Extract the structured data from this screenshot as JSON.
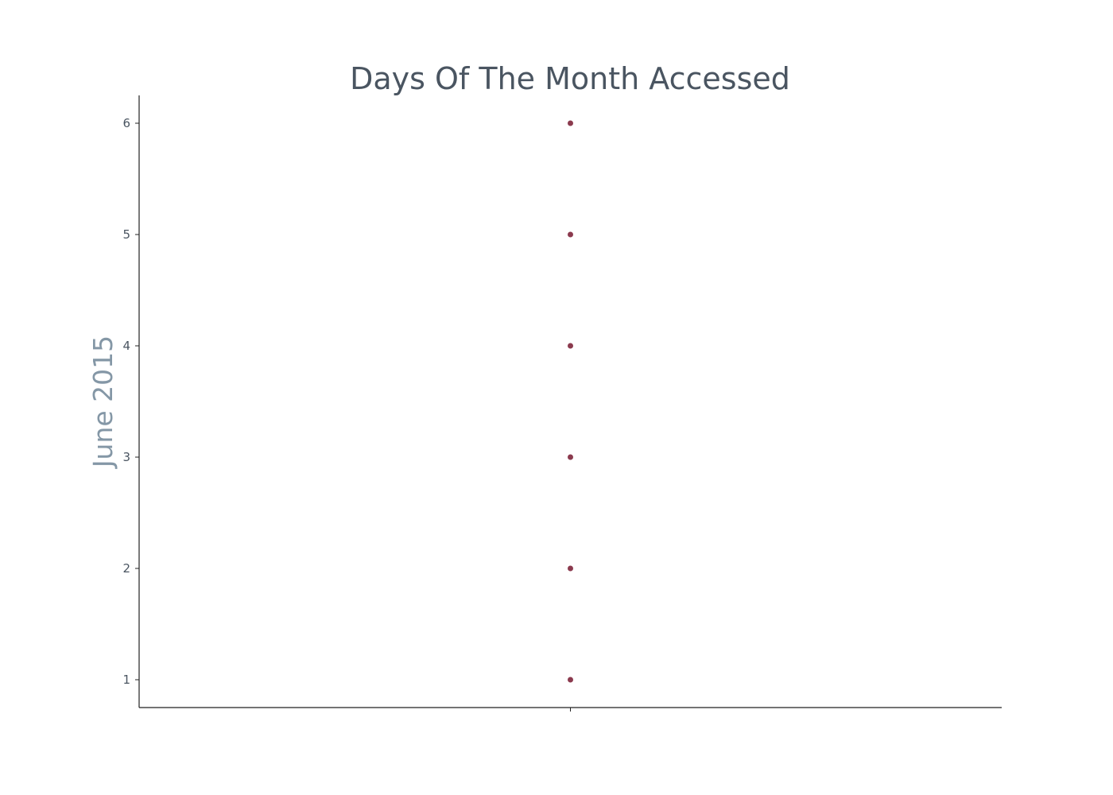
{
  "chart_data": {
    "type": "scatter",
    "title": "Days Of The Month Accessed",
    "xlabel": "",
    "ylabel": "June 2015",
    "x": [
      0,
      0,
      0,
      0,
      0,
      0
    ],
    "y": [
      1,
      2,
      3,
      4,
      5,
      6
    ],
    "xlim": [
      -1,
      1
    ],
    "ylim": [
      0.75,
      6.25
    ],
    "yticks": [
      1,
      2,
      3,
      4,
      5,
      6
    ],
    "xticks": [
      0
    ],
    "xtick_labels": [
      ""
    ],
    "grid": false,
    "legend": "none",
    "colors": {
      "point": "#8b3a4e",
      "title": "#4a5561",
      "ylabel": "#8497a6",
      "ticks": "#4a5561",
      "axis": "#222222"
    }
  }
}
